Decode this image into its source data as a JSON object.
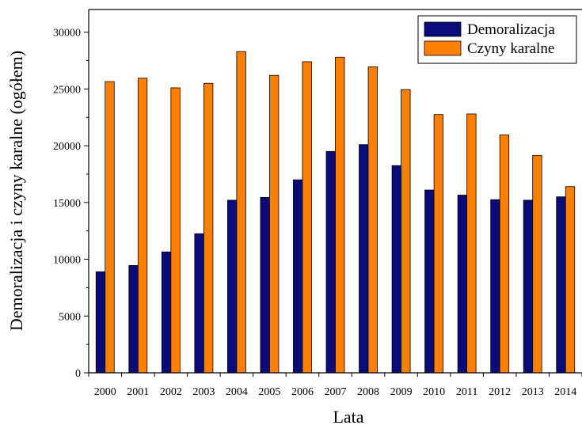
{
  "chart_data": {
    "type": "bar",
    "categories": [
      "2000",
      "2001",
      "2002",
      "2003",
      "2004",
      "2005",
      "2006",
      "2007",
      "2008",
      "2009",
      "2010",
      "2011",
      "2012",
      "2013",
      "2014"
    ],
    "series": [
      {
        "name": "Demoralizacja",
        "color": "#0a0a7a",
        "values": [
          8900,
          9450,
          10650,
          12250,
          15200,
          15450,
          17000,
          19500,
          20100,
          18250,
          16100,
          15650,
          15250,
          15200,
          15500
        ]
      },
      {
        "name": "Czyny karalne",
        "color": "#ff8000",
        "values": [
          25650,
          25950,
          25100,
          25500,
          28300,
          26200,
          27400,
          27800,
          26950,
          24950,
          22750,
          22800,
          20950,
          19150,
          16400
        ]
      }
    ],
    "xlabel": "Lata",
    "ylabel": "Demoralizacja i czyny karalne (ogółem)",
    "ylim": [
      0,
      32000
    ],
    "yticks": [
      0,
      5000,
      10000,
      15000,
      20000,
      25000,
      30000
    ],
    "legend_position": "top-right",
    "grid": false
  }
}
